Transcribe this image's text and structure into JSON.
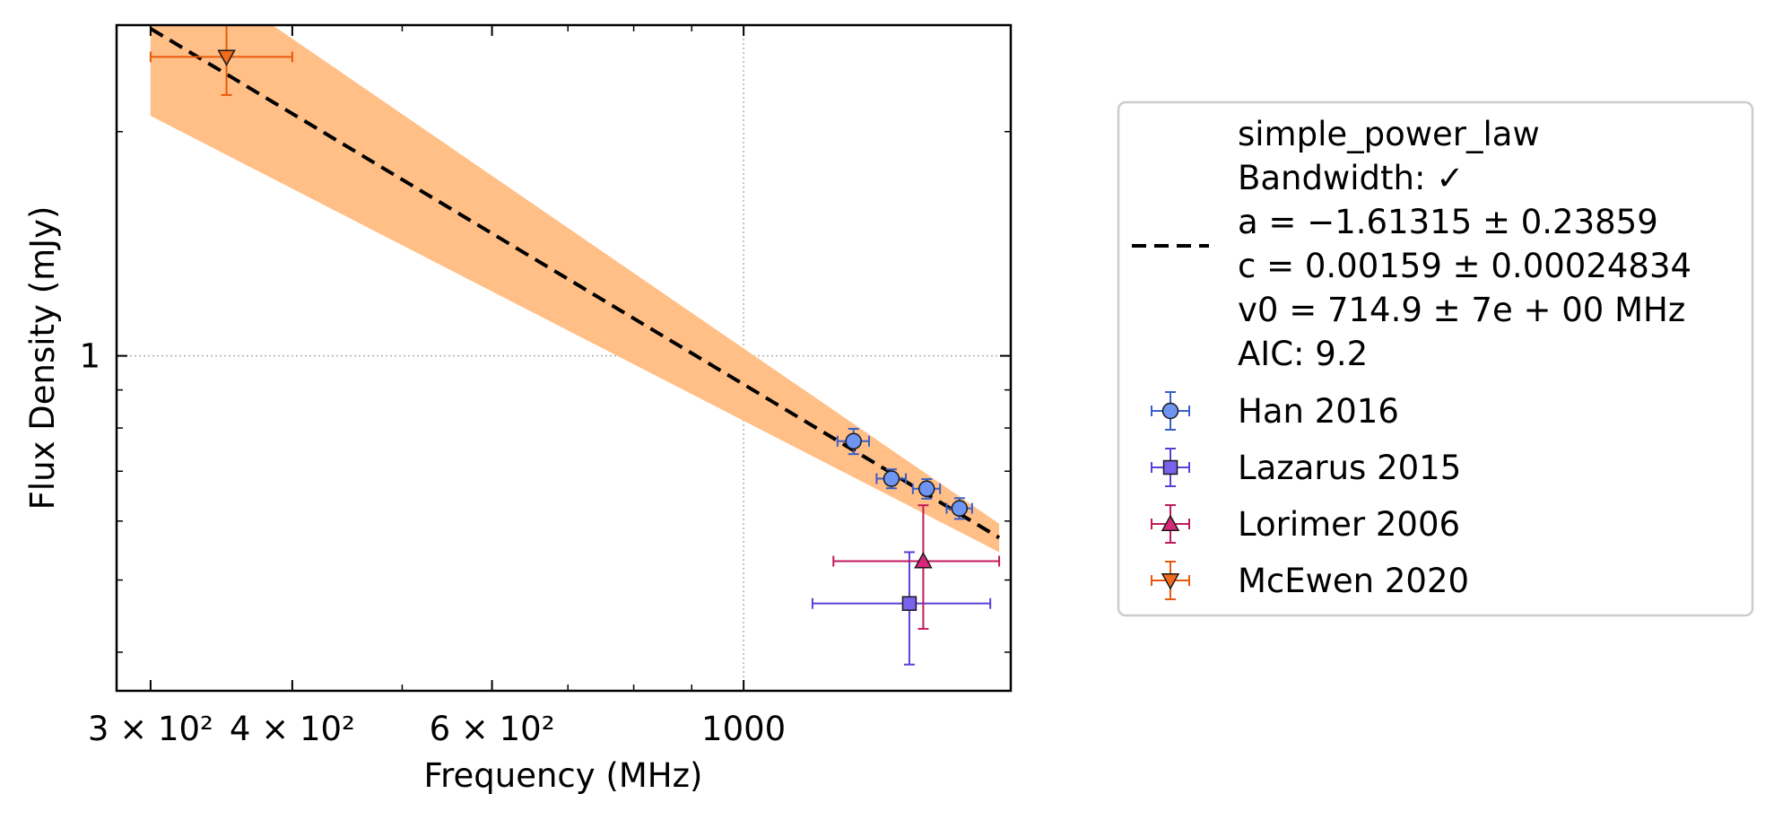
{
  "chart_data": {
    "type": "scatter",
    "xlabel": "Frequency (MHz)",
    "ylabel": "Flux Density (mJy)",
    "x_scale": "log",
    "y_scale": "log",
    "xlim": [
      280,
      1720
    ],
    "ylim": [
      0.355,
      2.78
    ],
    "x_ticks": [
      {
        "value": 300,
        "label": "3 × 10²"
      },
      {
        "value": 400,
        "label": "4 × 10²"
      },
      {
        "value": 600,
        "label": "6 × 10²"
      },
      {
        "value": 1000,
        "label": "1000"
      }
    ],
    "y_ticks": [
      {
        "value": 1,
        "label": "1"
      }
    ],
    "grid": "major gridlines at x = 1000 and y = 1 (dotted)",
    "legend_position": "outside right",
    "fit": {
      "model": "simple_power_law",
      "legend_lines": [
        "simple_power_law",
        "Bandwidth: ✓",
        "a = −1.61315 ± 0.23859",
        "c = 0.00159 ± 0.00024834",
        "v0 = 714.9 ± 7e + 00 MHz",
        "AIC: 9.2"
      ],
      "line_color": "#000000",
      "line_style": "dashed",
      "band_color": "#ffbf86",
      "x_range": [
        300,
        1680
      ],
      "line_points": [
        {
          "x": 300,
          "y": 2.75
        },
        {
          "x": 1680,
          "y": 0.57
        }
      ],
      "band_upper": [
        {
          "x": 300,
          "y": 3.6
        },
        {
          "x": 1680,
          "y": 0.595
        }
      ],
      "band_lower": [
        {
          "x": 300,
          "y": 2.1
        },
        {
          "x": 1680,
          "y": 0.545
        }
      ]
    },
    "series": [
      {
        "name": "Han 2016",
        "marker": "circle",
        "color": "#6f95f2",
        "edge_color": "#3a5fc8",
        "points": [
          {
            "x": 1250,
            "y": 0.768,
            "xerr": 40,
            "yerr": 0.03
          },
          {
            "x": 1350,
            "y": 0.684,
            "xerr": 40,
            "yerr": 0.02
          },
          {
            "x": 1450,
            "y": 0.663,
            "xerr": 40,
            "yerr": 0.02
          },
          {
            "x": 1550,
            "y": 0.624,
            "xerr": 40,
            "yerr": 0.02
          }
        ]
      },
      {
        "name": "Lazarus 2015",
        "marker": "square",
        "color": "#7b62ec",
        "edge_color": "#5a40d8",
        "points": [
          {
            "x": 1400,
            "y": 0.465,
            "xerr": 250,
            "yerr": 0.08
          }
        ]
      },
      {
        "name": "Lorimer 2006",
        "marker": "triangle-up",
        "color": "#d8277a",
        "edge_color": "#c2185b",
        "points": [
          {
            "x": 1440,
            "y": 0.53,
            "xerr": 240,
            "yerr": 0.1
          }
        ]
      },
      {
        "name": "McEwen 2020",
        "marker": "triangle-down",
        "color": "#f26a1b",
        "edge_color": "#e8590c",
        "points": [
          {
            "x": 350,
            "y": 2.52,
            "xerr": 50,
            "yerr": 0.28
          }
        ]
      }
    ]
  }
}
